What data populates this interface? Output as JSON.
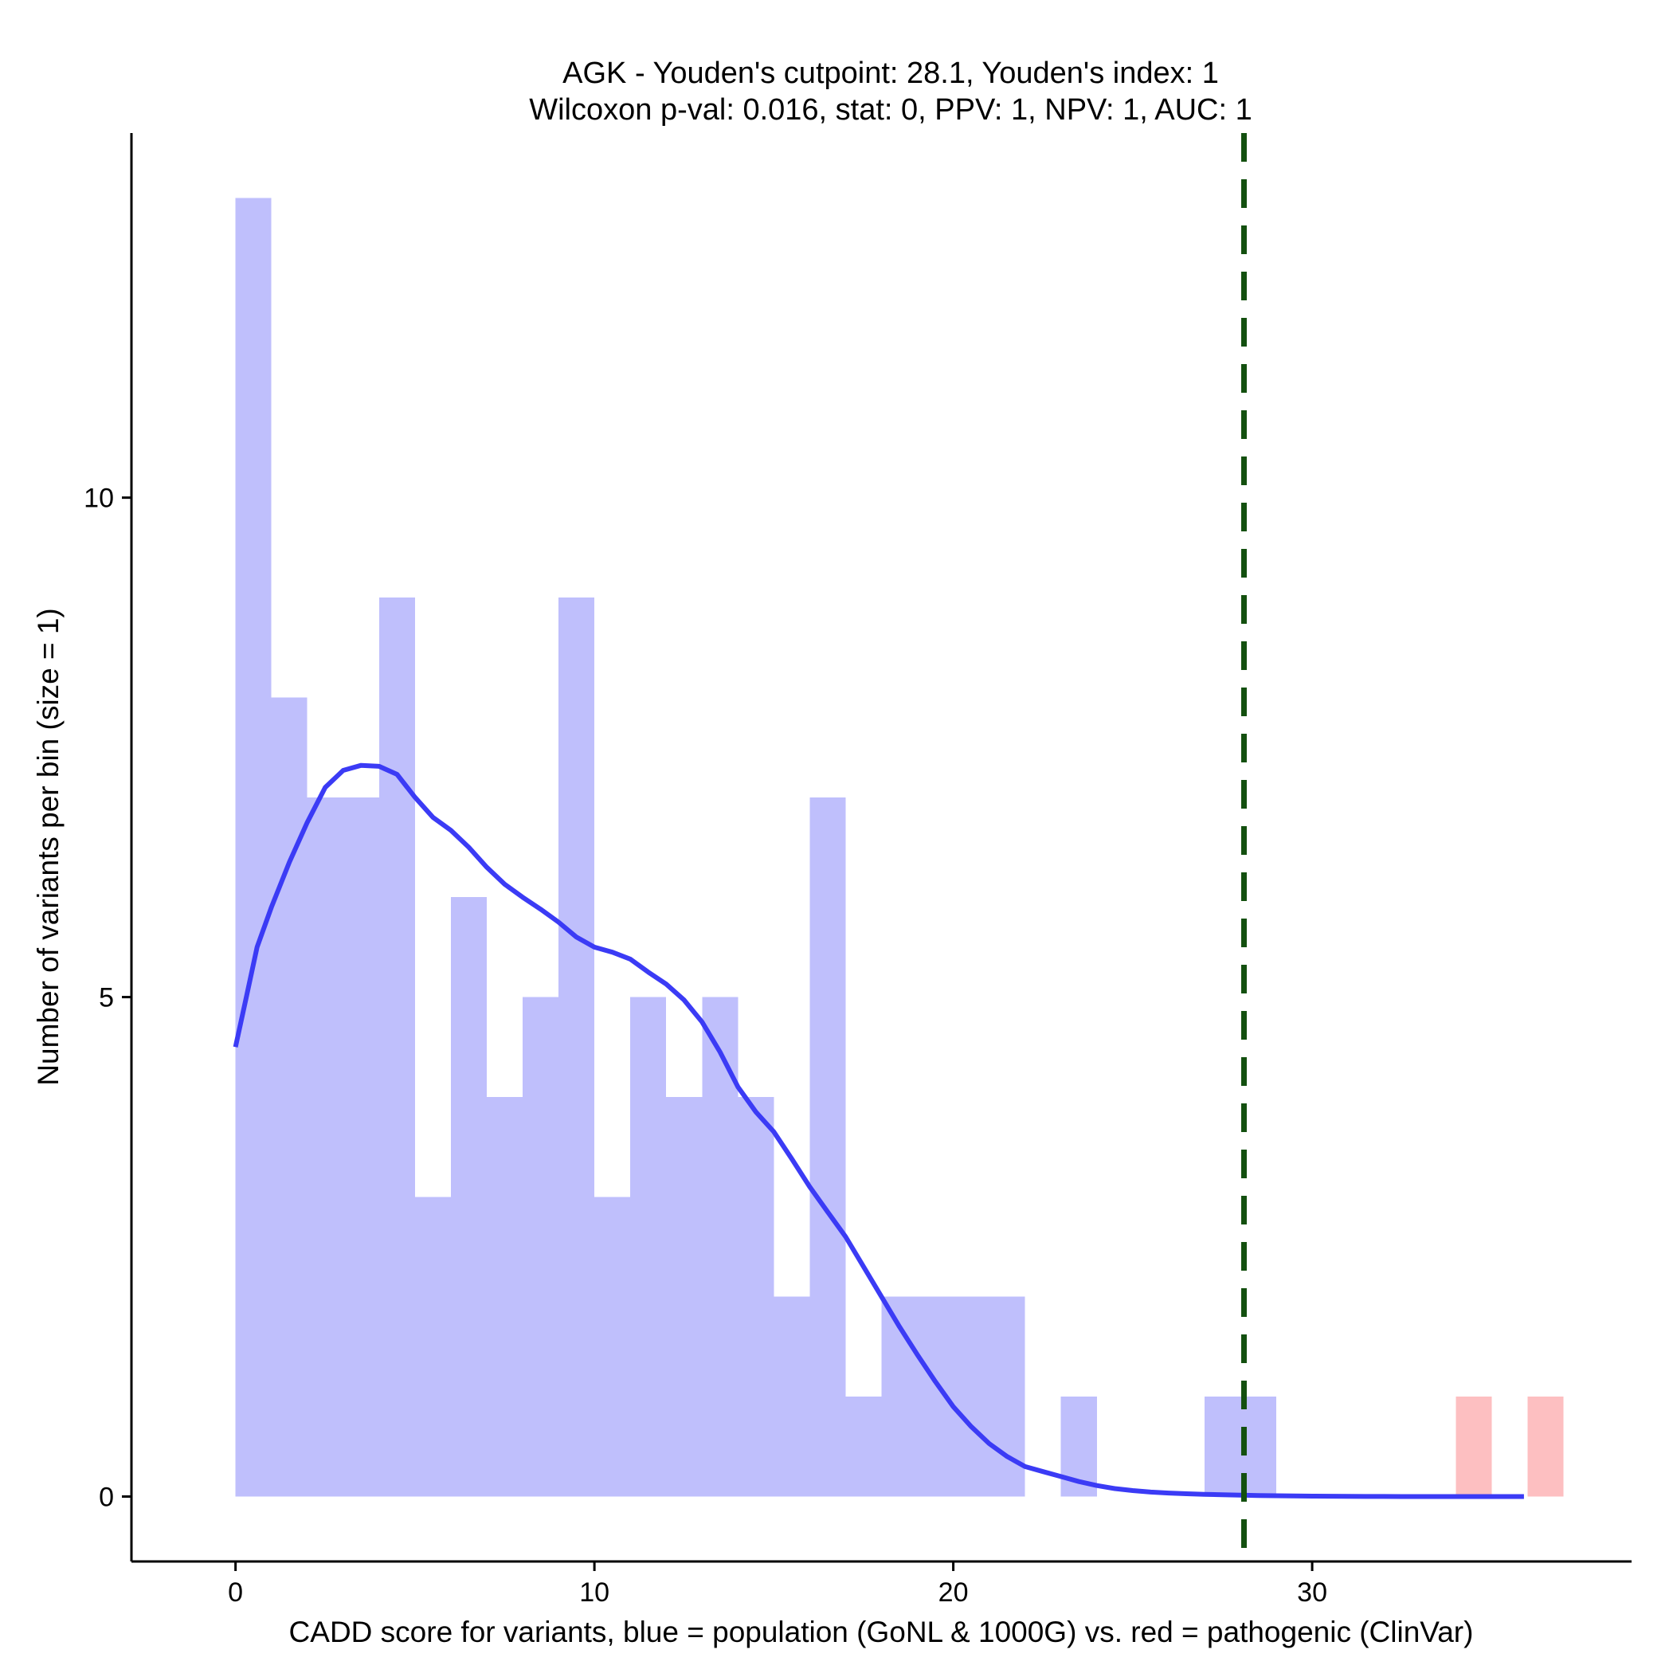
{
  "chart_data": {
    "type": "bar",
    "title_line1": "AGK - Youden's cutpoint: 28.1, Youden's index: 1",
    "title_line2": "Wilcoxon p-val: 0.016, stat: 0, PPV: 1, NPV: 1, AUC: 1",
    "xlabel": "CADD score for variants, blue = population (GoNL & 1000G) vs. red = pathogenic (ClinVar)",
    "ylabel": "Number of variants per bin (size = 1)",
    "xlim": [
      -2.9,
      38.9
    ],
    "ylim": [
      -0.65,
      13.65
    ],
    "x_ticks": [
      0,
      10,
      20,
      30
    ],
    "x_tick_labels": [
      "0",
      "10",
      "20",
      "30"
    ],
    "y_ticks": [
      0,
      5,
      10
    ],
    "y_tick_labels": [
      "0",
      "5",
      "10"
    ],
    "bin_width": 1,
    "cutpoint": 28.1,
    "series": [
      {
        "name": "population (GoNL & 1000G)",
        "color": "#bfbffc",
        "bins": [
          {
            "x": 0,
            "count": 13
          },
          {
            "x": 1,
            "count": 8
          },
          {
            "x": 2,
            "count": 7
          },
          {
            "x": 3,
            "count": 7
          },
          {
            "x": 4,
            "count": 9
          },
          {
            "x": 5,
            "count": 3
          },
          {
            "x": 6,
            "count": 6
          },
          {
            "x": 7,
            "count": 4
          },
          {
            "x": 8,
            "count": 5
          },
          {
            "x": 9,
            "count": 9
          },
          {
            "x": 10,
            "count": 3
          },
          {
            "x": 11,
            "count": 5
          },
          {
            "x": 12,
            "count": 4
          },
          {
            "x": 13,
            "count": 5
          },
          {
            "x": 14,
            "count": 4
          },
          {
            "x": 15,
            "count": 2
          },
          {
            "x": 16,
            "count": 7
          },
          {
            "x": 17,
            "count": 1
          },
          {
            "x": 18,
            "count": 2
          },
          {
            "x": 19,
            "count": 2
          },
          {
            "x": 20,
            "count": 2
          },
          {
            "x": 21,
            "count": 2
          },
          {
            "x": 23,
            "count": 1
          },
          {
            "x": 27,
            "count": 1
          },
          {
            "x": 28,
            "count": 1
          }
        ]
      },
      {
        "name": "pathogenic (ClinVar)",
        "color": "#fdbfc1",
        "bins": [
          {
            "x": 34,
            "count": 1
          },
          {
            "x": 36,
            "count": 1
          }
        ]
      }
    ],
    "density": {
      "name": "population density",
      "color": "#3b3bf5",
      "points": [
        [
          0,
          4.5
        ],
        [
          0.3,
          5.0
        ],
        [
          0.6,
          5.5
        ],
        [
          1.0,
          5.9
        ],
        [
          1.5,
          6.35
        ],
        [
          2.0,
          6.75
        ],
        [
          2.5,
          7.1
        ],
        [
          3.0,
          7.27
        ],
        [
          3.5,
          7.32
        ],
        [
          4.0,
          7.31
        ],
        [
          4.5,
          7.23
        ],
        [
          5.0,
          7.0
        ],
        [
          5.5,
          6.8
        ],
        [
          6.0,
          6.67
        ],
        [
          6.5,
          6.5
        ],
        [
          7.0,
          6.3
        ],
        [
          7.5,
          6.13
        ],
        [
          8.0,
          6.0
        ],
        [
          8.5,
          5.88
        ],
        [
          9.0,
          5.75
        ],
        [
          9.5,
          5.6
        ],
        [
          10.0,
          5.5
        ],
        [
          10.5,
          5.45
        ],
        [
          11.0,
          5.38
        ],
        [
          11.5,
          5.25
        ],
        [
          12.0,
          5.13
        ],
        [
          12.5,
          4.97
        ],
        [
          13.0,
          4.75
        ],
        [
          13.5,
          4.45
        ],
        [
          14.0,
          4.1
        ],
        [
          14.5,
          3.85
        ],
        [
          15.0,
          3.65
        ],
        [
          15.5,
          3.38
        ],
        [
          16.0,
          3.1
        ],
        [
          16.5,
          2.85
        ],
        [
          17.0,
          2.6
        ],
        [
          17.5,
          2.3
        ],
        [
          18.0,
          2.0
        ],
        [
          18.5,
          1.7
        ],
        [
          19.0,
          1.42
        ],
        [
          19.5,
          1.15
        ],
        [
          20.0,
          0.9
        ],
        [
          20.5,
          0.7
        ],
        [
          21.0,
          0.53
        ],
        [
          21.5,
          0.4
        ],
        [
          22.0,
          0.3
        ],
        [
          22.5,
          0.25
        ],
        [
          23.0,
          0.2
        ],
        [
          23.5,
          0.15
        ],
        [
          24.0,
          0.11
        ],
        [
          24.5,
          0.08
        ],
        [
          25.0,
          0.06
        ],
        [
          25.5,
          0.045
        ],
        [
          26.0,
          0.035
        ],
        [
          26.5,
          0.028
        ],
        [
          27.0,
          0.022
        ],
        [
          27.5,
          0.018
        ],
        [
          28.0,
          0.014
        ],
        [
          28.5,
          0.01
        ],
        [
          29.0,
          0.008
        ],
        [
          29.5,
          0.006
        ],
        [
          30.0,
          0.004
        ],
        [
          30.5,
          0.003
        ],
        [
          31.0,
          0.002
        ],
        [
          31.5,
          0.001
        ],
        [
          32.0,
          0.0005
        ],
        [
          32.5,
          0.0002
        ],
        [
          33.0,
          0.0
        ],
        [
          34.0,
          0.0
        ],
        [
          35.0,
          0.0
        ],
        [
          35.9,
          0.0
        ]
      ]
    },
    "cutpoint_color": "#13500f"
  }
}
